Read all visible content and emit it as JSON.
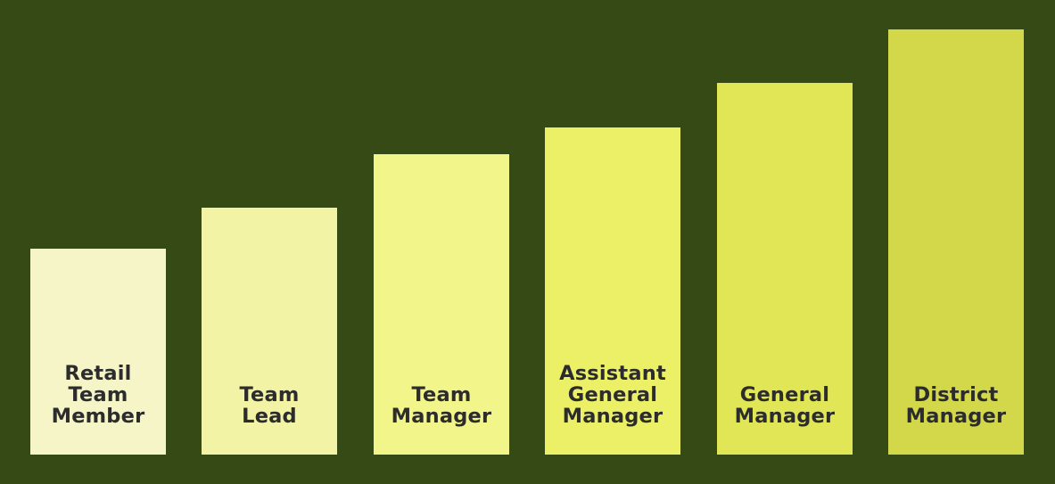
{
  "colors": {
    "background": "#364a15",
    "text": "#2c2c2c",
    "steps": [
      "#f5f5c8",
      "#f3f3a5",
      "#f2f58a",
      "#ebf067",
      "#e0e655",
      "#d2d84a"
    ]
  },
  "career_ladder": {
    "steps": [
      {
        "label": "Retail\nTeam\nMember"
      },
      {
        "label": "Team\nLead"
      },
      {
        "label": "Team\nManager"
      },
      {
        "label": "Assistant\nGeneral\nManager"
      },
      {
        "label": "General\nManager"
      },
      {
        "label": "District\nManager"
      }
    ]
  }
}
